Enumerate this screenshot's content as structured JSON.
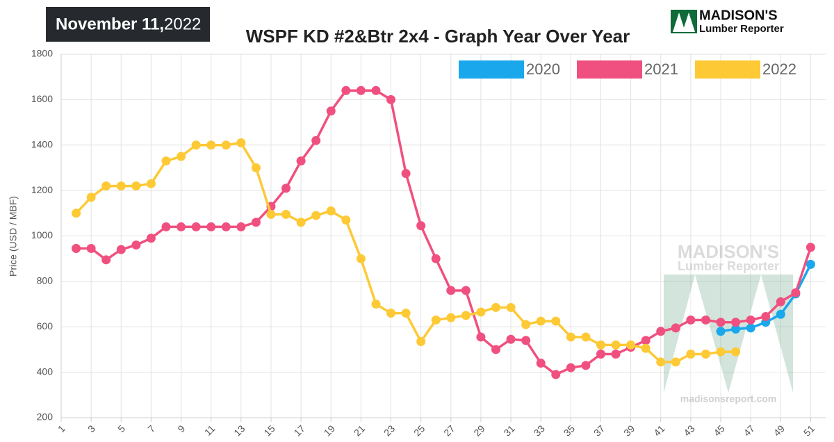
{
  "date": "November 11,",
  "year": "2022",
  "logo": {
    "name": "MADISON'S",
    "sub": "Lumber Reporter"
  },
  "watermark": {
    "name": "MADISON'S",
    "sub": "Lumber Reporter",
    "url": "madisonsreport.com"
  },
  "chart_data": {
    "type": "line",
    "title": "WSPF KD #2&Btr 2x4 - Graph Year Over Year",
    "y_label": "Price (USD / MBF)",
    "x": [
      2,
      3,
      4,
      5,
      6,
      7,
      8,
      9,
      10,
      11,
      12,
      13,
      14,
      15,
      16,
      17,
      18,
      19,
      20,
      21,
      22,
      23,
      24,
      25,
      26,
      27,
      28,
      29,
      30,
      31,
      32,
      33,
      34,
      35,
      36,
      37,
      38,
      39,
      40,
      41,
      42,
      43,
      44,
      45,
      46,
      47,
      48,
      49,
      50,
      51
    ],
    "series": [
      {
        "name": "2020",
        "color": "#1aa7ec",
        "values": [
          null,
          null,
          null,
          null,
          null,
          null,
          null,
          null,
          null,
          null,
          null,
          null,
          null,
          null,
          null,
          null,
          null,
          null,
          null,
          null,
          null,
          null,
          null,
          null,
          null,
          null,
          null,
          null,
          null,
          null,
          null,
          null,
          null,
          null,
          null,
          null,
          null,
          null,
          null,
          null,
          null,
          null,
          null,
          580,
          590,
          595,
          620,
          655,
          745,
          875
        ]
      },
      {
        "name": "2021",
        "color": "#f0507f",
        "values": [
          945,
          945,
          895,
          940,
          960,
          990,
          1040,
          1040,
          1040,
          1040,
          1040,
          1040,
          1060,
          1130,
          1210,
          1330,
          1420,
          1550,
          1640,
          1640,
          1640,
          1600,
          1275,
          1045,
          900,
          760,
          760,
          555,
          500,
          545,
          540,
          440,
          390,
          420,
          430,
          480,
          480,
          510,
          540,
          580,
          595,
          630,
          630,
          620,
          620,
          630,
          645,
          710,
          750,
          950
        ]
      },
      {
        "name": "2022",
        "color": "#fdc935",
        "values": [
          1100,
          1170,
          1220,
          1220,
          1220,
          1230,
          1330,
          1350,
          1400,
          1400,
          1400,
          1410,
          1300,
          1095,
          1095,
          1060,
          1090,
          1110,
          1070,
          900,
          700,
          660,
          660,
          535,
          630,
          640,
          650,
          665,
          685,
          685,
          610,
          625,
          625,
          555,
          555,
          520,
          520,
          520,
          505,
          445,
          445,
          480,
          480,
          490,
          490,
          null,
          null,
          null,
          null,
          null
        ]
      }
    ],
    "xlim": [
      1,
      52
    ],
    "xticks": [
      1,
      3,
      5,
      7,
      9,
      11,
      13,
      15,
      17,
      19,
      21,
      23,
      25,
      27,
      29,
      31,
      33,
      35,
      37,
      39,
      41,
      43,
      45,
      47,
      49,
      51
    ],
    "ylim": [
      200,
      1800
    ],
    "yticks": [
      200,
      400,
      600,
      800,
      1000,
      1200,
      1400,
      1600,
      1800
    ],
    "grid": true,
    "legend": "top-right"
  }
}
